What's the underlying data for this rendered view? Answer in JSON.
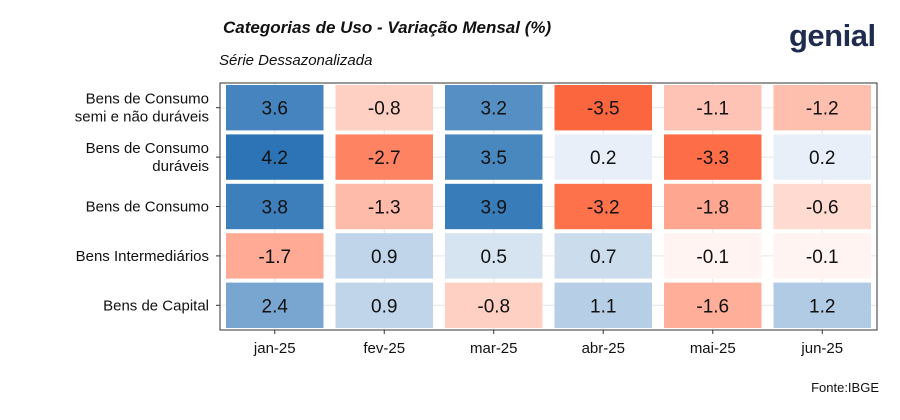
{
  "title": "Categorias de Uso - Variação Mensal (%)",
  "subtitle": "Série Dessazonalizada",
  "logo": "genial",
  "source": "Fonte:IBGE",
  "chart_data": {
    "type": "heatmap",
    "x_categories": [
      "jan-25",
      "fev-25",
      "mar-25",
      "abr-25",
      "mai-25",
      "jun-25"
    ],
    "y_categories": [
      [
        "Bens de Consumo",
        "semi e não duráveis"
      ],
      [
        "Bens de Consumo",
        "duráveis"
      ],
      [
        "Bens de Consumo"
      ],
      [
        "Bens Intermediários"
      ],
      [
        "Bens de Capital"
      ]
    ],
    "values": [
      [
        3.6,
        -0.8,
        3.2,
        -3.5,
        -1.1,
        -1.2
      ],
      [
        4.2,
        -2.7,
        3.5,
        0.2,
        -3.3,
        0.2
      ],
      [
        3.8,
        -1.3,
        3.9,
        -3.2,
        -1.8,
        -0.6
      ],
      [
        -1.7,
        0.9,
        0.5,
        0.7,
        -0.1,
        -0.1
      ],
      [
        2.4,
        0.9,
        -0.8,
        1.1,
        -1.6,
        1.2
      ]
    ],
    "color_scale": {
      "negative": "#fc4d1e",
      "zero": "#ffffff",
      "positive": "#2c74b5",
      "limit": 4.2
    },
    "grid": true,
    "legend": "none"
  }
}
